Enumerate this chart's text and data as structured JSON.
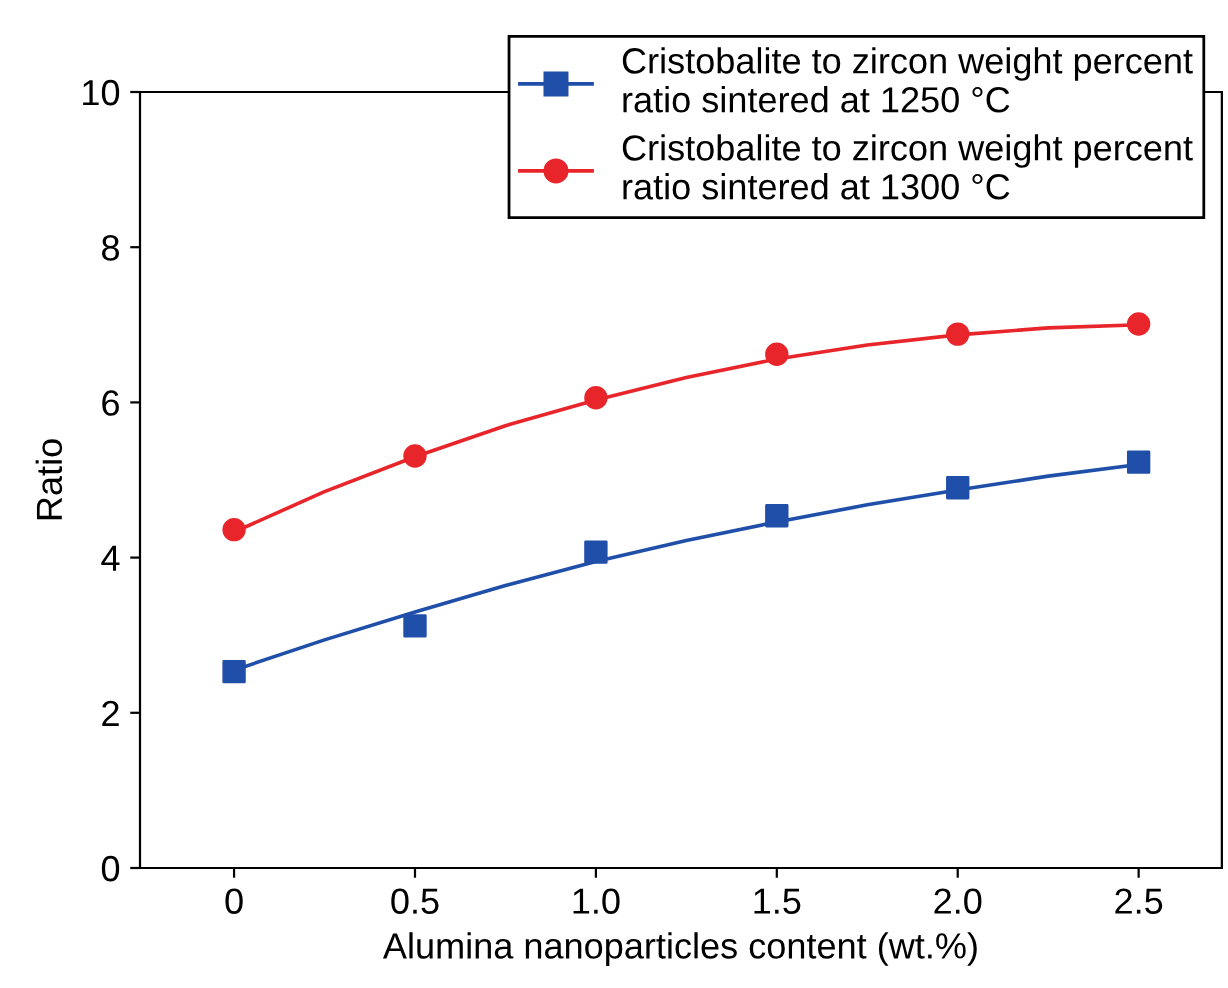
{
  "chart_data": {
    "type": "scatter",
    "xlabel": "Alumina nanoparticles content (wt.%)",
    "ylabel": "Ratio",
    "xlim": [
      -0.26,
      2.73
    ],
    "ylim": [
      0,
      10
    ],
    "xticks": [
      0,
      {
        "value": 0.5,
        "label": "0.5"
      },
      {
        "value": 1,
        "label": "1.0"
      },
      {
        "value": 1.5,
        "label": "1.5"
      },
      {
        "value": 2,
        "label": "2.0"
      },
      {
        "value": 2.5,
        "label": "2.5"
      }
    ],
    "yticks": [
      0,
      2,
      4,
      6,
      8,
      10
    ],
    "grid": false,
    "legend": "top right",
    "series": [
      {
        "name": "Cristobalite to zircon weight percent\nratio sintered at 1250 °C",
        "color": "#1f4fa8",
        "marker": "square",
        "x": [
          0,
          0.5,
          1,
          1.5,
          2,
          2.5
        ],
        "values": [
          2.53,
          3.12,
          4.07,
          4.54,
          4.9,
          5.23
        ]
      },
      {
        "name": "Cristobalite to zircon weight percent\nratio sintered at 1300 °C",
        "color": "#e8252a",
        "marker": "circle",
        "x": [
          0,
          0.5,
          1,
          1.5,
          2,
          2.5
        ],
        "values": [
          4.36,
          5.31,
          6.06,
          6.62,
          6.88,
          7.01
        ]
      },
      {
        "type": "line",
        "color": "#1f4fa8",
        "marker": "none",
        "line_style": "solid",
        "x": [
          0,
          0.25,
          0.5,
          0.75,
          1,
          1.25,
          1.5,
          1.75,
          2,
          2.25,
          2.5
        ],
        "values": [
          2.55,
          2.94,
          3.3,
          3.64,
          3.95,
          4.22,
          4.46,
          4.68,
          4.87,
          5.05,
          5.2
        ]
      },
      {
        "type": "line",
        "color": "#e8252a",
        "marker": "none",
        "line_style": "solid",
        "x": [
          0,
          0.25,
          0.5,
          0.75,
          1,
          1.25,
          1.5,
          1.75,
          2,
          2.25,
          2.5
        ],
        "values": [
          4.33,
          4.85,
          5.3,
          5.7,
          6.03,
          6.32,
          6.56,
          6.74,
          6.87,
          6.96,
          7.0
        ]
      }
    ]
  }
}
